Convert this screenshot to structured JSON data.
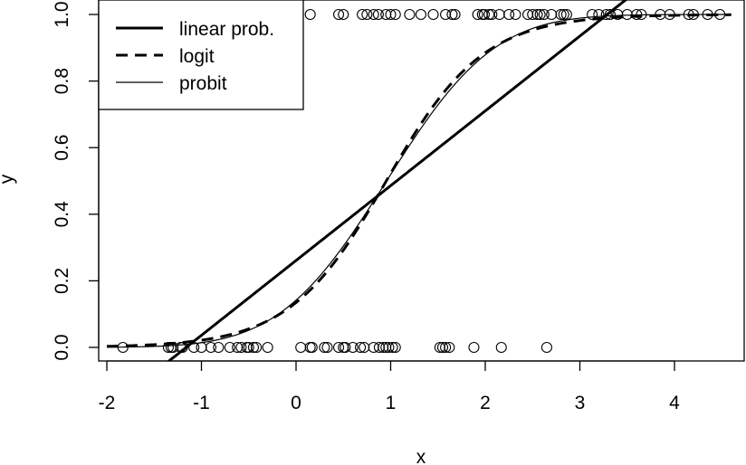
{
  "chart_data": {
    "type": "scatter",
    "xlabel": "x",
    "ylabel": "y",
    "xlim": [
      -2,
      4.5
    ],
    "ylim": [
      0,
      1
    ],
    "x_ticks": [
      -2,
      -1,
      0,
      1,
      2,
      3,
      4
    ],
    "y_ticks": [
      0.0,
      0.2,
      0.4,
      0.6,
      0.8,
      1.0
    ],
    "x_tick_labels": [
      "-2",
      "-1",
      "0",
      "1",
      "2",
      "3",
      "4"
    ],
    "y_tick_labels": [
      "0.0",
      "0.2",
      "0.4",
      "0.6",
      "0.8",
      "1.0"
    ],
    "grid": false,
    "legend_position": "top-left",
    "legend": [
      {
        "label": "linear prob.",
        "style": "solid-thick"
      },
      {
        "label": "logit",
        "style": "dashed-thick"
      },
      {
        "label": "probit",
        "style": "solid-thin"
      }
    ],
    "points_y0": [
      -1.83,
      -1.35,
      -1.32,
      -1.3,
      -1.22,
      -1.2,
      -1.08,
      -1.0,
      -0.9,
      -0.82,
      -0.7,
      -0.62,
      -0.58,
      -0.52,
      -0.5,
      -0.45,
      -0.42,
      -0.3,
      0.05,
      0.15,
      0.17,
      0.3,
      0.33,
      0.45,
      0.5,
      0.52,
      0.6,
      0.68,
      0.72,
      0.82,
      0.88,
      0.92,
      0.95,
      0.98,
      1.02,
      1.05,
      1.52,
      1.55,
      1.58,
      1.62,
      1.88,
      2.17,
      2.65
    ],
    "points_y1": [
      0.15,
      0.45,
      0.5,
      0.7,
      0.75,
      0.82,
      0.87,
      0.95,
      1.0,
      1.05,
      1.2,
      1.32,
      1.45,
      1.58,
      1.65,
      1.68,
      1.92,
      1.97,
      1.99,
      2.04,
      2.07,
      2.15,
      2.25,
      2.32,
      2.45,
      2.5,
      2.55,
      2.58,
      2.62,
      2.7,
      2.8,
      2.83,
      2.86,
      3.13,
      3.2,
      3.28,
      3.32,
      3.4,
      3.5,
      3.6,
      3.65,
      3.85,
      3.95,
      4.15,
      4.2,
      4.35,
      4.48
    ],
    "linear_prob": {
      "intercept": 0.261,
      "slope": 0.2247
    },
    "logit": {
      "a": -1.86,
      "b": 1.95
    },
    "probit": {
      "a": -1.072,
      "b": 1.12
    }
  }
}
